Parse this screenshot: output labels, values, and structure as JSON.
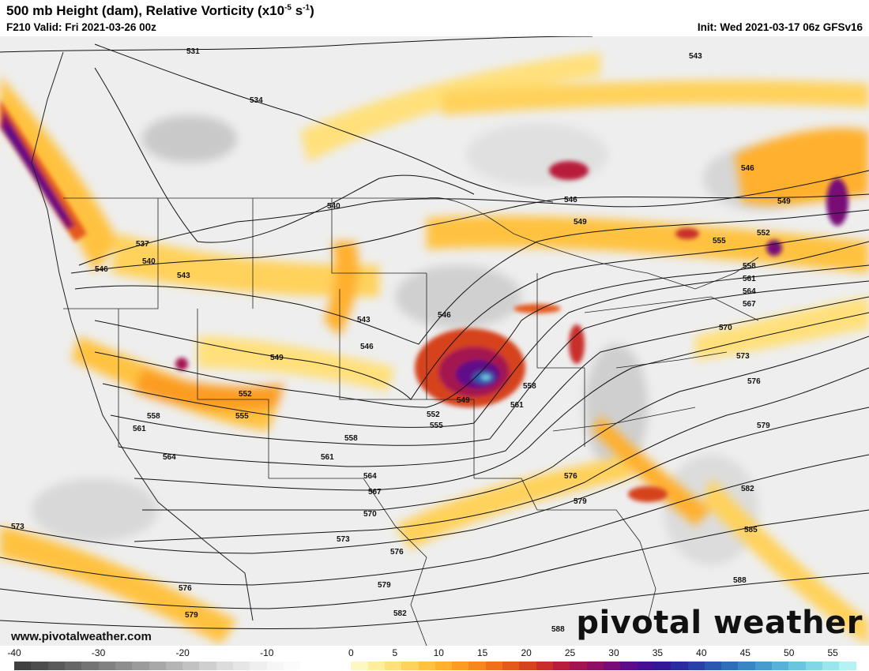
{
  "header": {
    "title_main": "500 mb Height (dam), Relative Vorticity (x10",
    "title_exp": "-5",
    "title_unit": " s",
    "title_unit_exp": "-1",
    "title_close": ")",
    "valid": "F210 Valid: Fri 2021-03-26 00z",
    "init": "Init: Wed 2021-03-17 06z GFSv16"
  },
  "footer": {
    "website": "www.pivotalweather.com",
    "logo_text": "pivotal weather"
  },
  "colorbar": {
    "labels": [
      "-40",
      "-30",
      "-20",
      "-10",
      "0",
      "5",
      "10",
      "15",
      "20",
      "25",
      "30",
      "35",
      "40",
      "45",
      "50",
      "55"
    ],
    "negative_colors": [
      "#404040",
      "#4d4d4d",
      "#5a5a5a",
      "#676767",
      "#747474",
      "#818181",
      "#8e8e8e",
      "#9b9b9b",
      "#a8a8a8",
      "#b5b5b5",
      "#c2c2c2",
      "#cfcfcf",
      "#dcdcdc",
      "#e6e6e6",
      "#efefef",
      "#f6f6f6",
      "#fbfbfb",
      "#ffffff",
      "#ffffff",
      "#ffffff"
    ],
    "positive_colors": [
      "#fff7c2",
      "#ffec9c",
      "#ffe07a",
      "#ffd25c",
      "#ffc240",
      "#ffb02e",
      "#fc9c22",
      "#f7861c",
      "#ef6f1a",
      "#e4591c",
      "#d6431f",
      "#c82f2a",
      "#b81e3b",
      "#a4154f",
      "#8e1064",
      "#780d78",
      "#5f0c88",
      "#470f92",
      "#331797",
      "#2a2b9e",
      "#2741a6",
      "#2958b0",
      "#2f6fba",
      "#3a86c4",
      "#489ccd",
      "#58b1d6",
      "#6cc5de",
      "#82d6e6",
      "#9ae5ee",
      "#b4f2f6"
    ]
  },
  "map": {
    "contour_labels": [
      {
        "text": "531"
      },
      {
        "text": "534"
      },
      {
        "text": "537"
      },
      {
        "text": "540"
      },
      {
        "text": "540"
      },
      {
        "text": "543"
      },
      {
        "text": "543"
      },
      {
        "text": "543"
      },
      {
        "text": "546"
      },
      {
        "text": "546"
      },
      {
        "text": "546"
      },
      {
        "text": "546"
      },
      {
        "text": "546"
      },
      {
        "text": "549"
      },
      {
        "text": "549"
      },
      {
        "text": "549"
      },
      {
        "text": "549"
      },
      {
        "text": "552"
      },
      {
        "text": "552"
      },
      {
        "text": "552"
      },
      {
        "text": "555"
      },
      {
        "text": "555"
      },
      {
        "text": "555"
      },
      {
        "text": "558"
      },
      {
        "text": "558"
      },
      {
        "text": "558"
      },
      {
        "text": "558"
      },
      {
        "text": "561"
      },
      {
        "text": "561"
      },
      {
        "text": "561"
      },
      {
        "text": "561"
      },
      {
        "text": "564"
      },
      {
        "text": "564"
      },
      {
        "text": "564"
      },
      {
        "text": "567"
      },
      {
        "text": "567"
      },
      {
        "text": "570"
      },
      {
        "text": "570"
      },
      {
        "text": "573"
      },
      {
        "text": "573"
      },
      {
        "text": "573"
      },
      {
        "text": "576"
      },
      {
        "text": "576"
      },
      {
        "text": "576"
      },
      {
        "text": "576"
      },
      {
        "text": "579"
      },
      {
        "text": "579"
      },
      {
        "text": "579"
      },
      {
        "text": "579"
      },
      {
        "text": "582"
      },
      {
        "text": "582"
      },
      {
        "text": "585"
      },
      {
        "text": "588"
      },
      {
        "text": "588"
      }
    ]
  }
}
